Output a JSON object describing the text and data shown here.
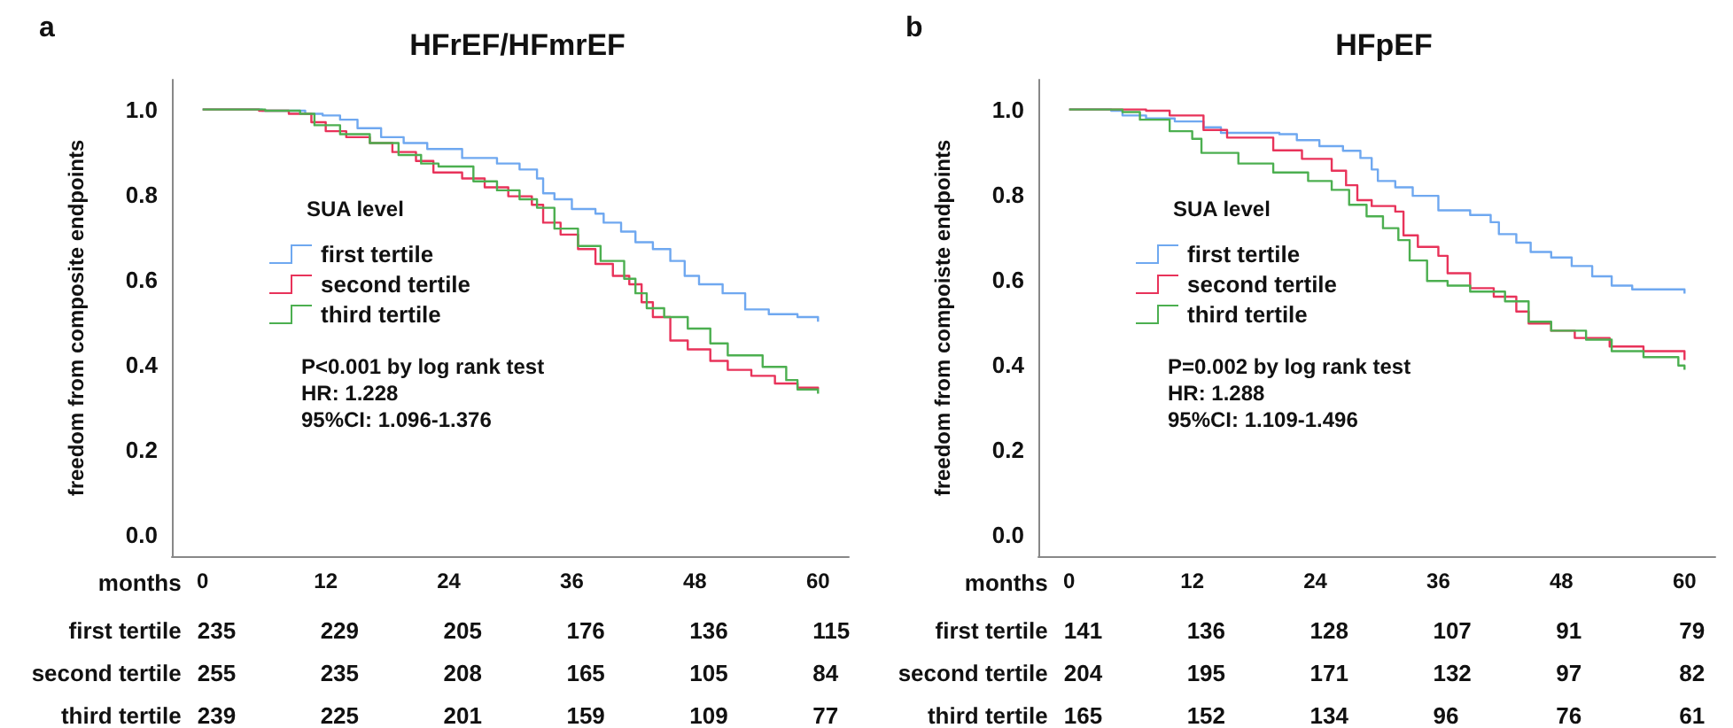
{
  "chart_data": [
    {
      "type": "step",
      "title": "HFrEF/HFmrEF",
      "xlabel": "months",
      "ylabel": "freedom from composite endpoints",
      "legend_title": "SUA level",
      "legend": "left",
      "grid": false,
      "line_style": "solid",
      "marker": "none",
      "xlim": [
        -3,
        63
      ],
      "xticks": [
        0,
        12,
        24,
        36,
        48,
        60
      ],
      "ylim": [
        -0.05,
        1.07
      ],
      "yticks": [
        {
          "value": 0,
          "label": "0.0"
        },
        {
          "value": 0.2,
          "label": "0.2"
        },
        {
          "value": 0.4,
          "label": "0.4"
        },
        {
          "value": 0.6,
          "label": "0.6"
        },
        {
          "value": 0.8,
          "label": "0.8"
        },
        {
          "value": 1,
          "label": "1.0"
        }
      ],
      "annotations": [
        "a",
        "P<0.001 by log rank test",
        "HR: 1.228",
        "95%CI: 1.096-1.376",
        "first tertile",
        "235",
        "229",
        "205",
        "176",
        "136",
        "115",
        "second tertile",
        "255",
        "235",
        "208",
        "165",
        "105",
        "84",
        "third tertile",
        "239",
        "225",
        "201",
        "159",
        "109",
        "77"
      ],
      "series": [
        {
          "name": "first tertile",
          "color": "#6fa8f0",
          "x": [
            0,
            5.8,
            10,
            11.7,
            13.4,
            15.1,
            17.4,
            19.6,
            21.9,
            25.3,
            28.7,
            30.9,
            32.6,
            33.2,
            34.3,
            36,
            38.3,
            39.1,
            40.8,
            42.2,
            43.9,
            45.6,
            47,
            48.4,
            50.7,
            52.9,
            55.2,
            58,
            60
          ],
          "values": [
            1,
            0.997,
            0.99,
            0.986,
            0.976,
            0.956,
            0.935,
            0.921,
            0.907,
            0.886,
            0.873,
            0.859,
            0.838,
            0.803,
            0.789,
            0.766,
            0.755,
            0.734,
            0.713,
            0.688,
            0.672,
            0.644,
            0.609,
            0.589,
            0.568,
            0.53,
            0.519,
            0.512,
            0.501
          ]
        },
        {
          "name": "second tertile",
          "color": "#e8335a",
          "x": [
            0,
            5.5,
            8.4,
            10.6,
            12,
            14,
            16.3,
            18.5,
            20.8,
            22.5,
            25.3,
            27.5,
            29.8,
            32.1,
            33.2,
            34.9,
            36.6,
            38.3,
            40,
            41.6,
            42.8,
            43.9,
            45.6,
            47.3,
            49.5,
            51.2,
            53.5,
            55.8,
            58,
            60
          ],
          "values": [
            1,
            0.997,
            0.99,
            0.97,
            0.949,
            0.935,
            0.921,
            0.9,
            0.879,
            0.852,
            0.838,
            0.817,
            0.796,
            0.776,
            0.734,
            0.706,
            0.672,
            0.637,
            0.609,
            0.589,
            0.547,
            0.512,
            0.457,
            0.436,
            0.409,
            0.388,
            0.374,
            0.356,
            0.346,
            0.343
          ]
        },
        {
          "name": "third tertile",
          "color": "#4caf50",
          "x": [
            0,
            6.1,
            9.5,
            10.9,
            13.4,
            16.3,
            19.1,
            21.3,
            23,
            26.4,
            28.7,
            30.9,
            32.6,
            34.3,
            36.6,
            38.8,
            41.1,
            42.2,
            43.3,
            45,
            47.3,
            49.5,
            51.2,
            54.6,
            56.9,
            58,
            60
          ],
          "values": [
            1,
            0.997,
            0.99,
            0.963,
            0.942,
            0.921,
            0.893,
            0.873,
            0.866,
            0.831,
            0.81,
            0.789,
            0.769,
            0.72,
            0.679,
            0.644,
            0.602,
            0.568,
            0.533,
            0.512,
            0.485,
            0.45,
            0.422,
            0.395,
            0.364,
            0.342,
            0.332
          ]
        }
      ]
    },
    {
      "type": "step",
      "title": "HFpEF",
      "xlabel": "months",
      "ylabel": "freedom from compoiste endpoints",
      "legend_title": "SUA level",
      "legend": "left",
      "grid": false,
      "line_style": "solid",
      "marker": "none",
      "xlim": [
        -3,
        63
      ],
      "xticks": [
        0,
        12,
        24,
        36,
        48,
        60
      ],
      "ylim": [
        -0.05,
        1.07
      ],
      "yticks": [
        {
          "value": 0,
          "label": "0.0"
        },
        {
          "value": 0.2,
          "label": "0.2"
        },
        {
          "value": 0.4,
          "label": "0.4"
        },
        {
          "value": 0.6,
          "label": "0.6"
        },
        {
          "value": 0.8,
          "label": "0.8"
        },
        {
          "value": 1,
          "label": "1.0"
        }
      ],
      "annotations": [
        "b",
        "P=0.002 by log rank test",
        "HR: 1.288",
        "95%CI: 1.109-1.496",
        "first tertile",
        "141",
        "136",
        "128",
        "107",
        "91",
        "79",
        "second tertile",
        "204",
        "195",
        "171",
        "132",
        "97",
        "82",
        "third tertile",
        "165",
        "152",
        "134",
        "96",
        "76",
        "61"
      ],
      "series": [
        {
          "name": "first tertile",
          "color": "#6fa8f0",
          "x": [
            0,
            4.1,
            5.2,
            7.5,
            10.3,
            13.1,
            14.8,
            20.5,
            22.2,
            24.4,
            26.7,
            28.4,
            29.5,
            30.1,
            31.8,
            33.5,
            36,
            39.1,
            41.1,
            41.9,
            43.6,
            45,
            47,
            49,
            51,
            52.9,
            54.9,
            60
          ],
          "values": [
            1,
            0.997,
            0.986,
            0.979,
            0.972,
            0.958,
            0.945,
            0.942,
            0.928,
            0.914,
            0.903,
            0.886,
            0.859,
            0.832,
            0.817,
            0.797,
            0.763,
            0.752,
            0.735,
            0.707,
            0.687,
            0.665,
            0.652,
            0.632,
            0.608,
            0.586,
            0.577,
            0.567
          ]
        },
        {
          "name": "second tertile",
          "color": "#e8335a",
          "x": [
            0,
            7.5,
            9.8,
            13.1,
            15.4,
            19.9,
            22.7,
            25.6,
            27,
            28.1,
            29.5,
            31.8,
            32.6,
            34,
            36,
            36.9,
            39.1,
            41.4,
            43.6,
            44.8,
            47,
            49.3,
            52.7,
            56,
            60
          ],
          "values": [
            1,
            0.997,
            0.986,
            0.952,
            0.934,
            0.904,
            0.884,
            0.856,
            0.822,
            0.787,
            0.773,
            0.76,
            0.704,
            0.677,
            0.656,
            0.615,
            0.58,
            0.56,
            0.525,
            0.497,
            0.48,
            0.463,
            0.443,
            0.432,
            0.411
          ]
        },
        {
          "name": "third tertile",
          "color": "#4caf50",
          "x": [
            0,
            5.2,
            6.9,
            9.8,
            12,
            12.9,
            16.5,
            19.9,
            23.3,
            25.6,
            27.3,
            29,
            30.6,
            32.1,
            33.2,
            34.9,
            36.9,
            39.1,
            42.5,
            44.8,
            47,
            50.4,
            52.9,
            56,
            59.4,
            60
          ],
          "values": [
            1,
            0.994,
            0.976,
            0.949,
            0.931,
            0.898,
            0.873,
            0.852,
            0.832,
            0.811,
            0.776,
            0.749,
            0.721,
            0.693,
            0.645,
            0.597,
            0.586,
            0.572,
            0.549,
            0.501,
            0.48,
            0.459,
            0.432,
            0.418,
            0.398,
            0.388
          ]
        }
      ]
    }
  ]
}
